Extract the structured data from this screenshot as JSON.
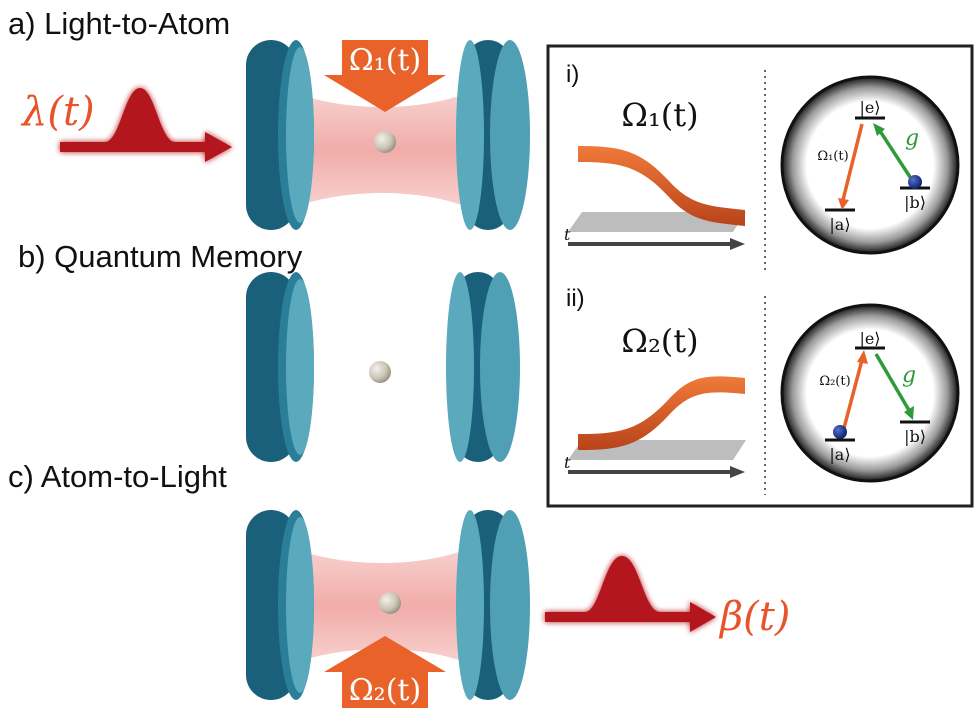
{
  "panels": {
    "a": "a) Light-to-Atom",
    "b": "b) Quantum Memory",
    "c": "c) Atom-to-Light"
  },
  "pulses": {
    "input": "λ(t)",
    "output": "β(t)"
  },
  "control_fields": {
    "omega1": "Ω₁(t)",
    "omega2": "Ω₂(t)"
  },
  "inset": {
    "i": {
      "label": "i)",
      "pulse_title": "Ω₁(t)",
      "time_axis": "t",
      "level_e": "|e⟩",
      "level_a": "|a⟩",
      "level_b": "|b⟩",
      "transition_drive": "Ω₁(t)",
      "coupling": "g"
    },
    "ii": {
      "label": "ii)",
      "pulse_title": "Ω₂(t)",
      "time_axis": "t",
      "level_e": "|e⟩",
      "level_a": "|a⟩",
      "level_b": "|b⟩",
      "transition_drive": "Ω₂(t)",
      "coupling": "g"
    }
  },
  "colors": {
    "mirror": "#1f6e87",
    "mirror_face": "#5aa9bd",
    "cavity_mode": "#f3b7b4",
    "photon_pulse": "#b3121e",
    "control_arrow": "#e8622a",
    "coupling_g": "#2e9b3a",
    "atom": "#cbc6b9"
  }
}
